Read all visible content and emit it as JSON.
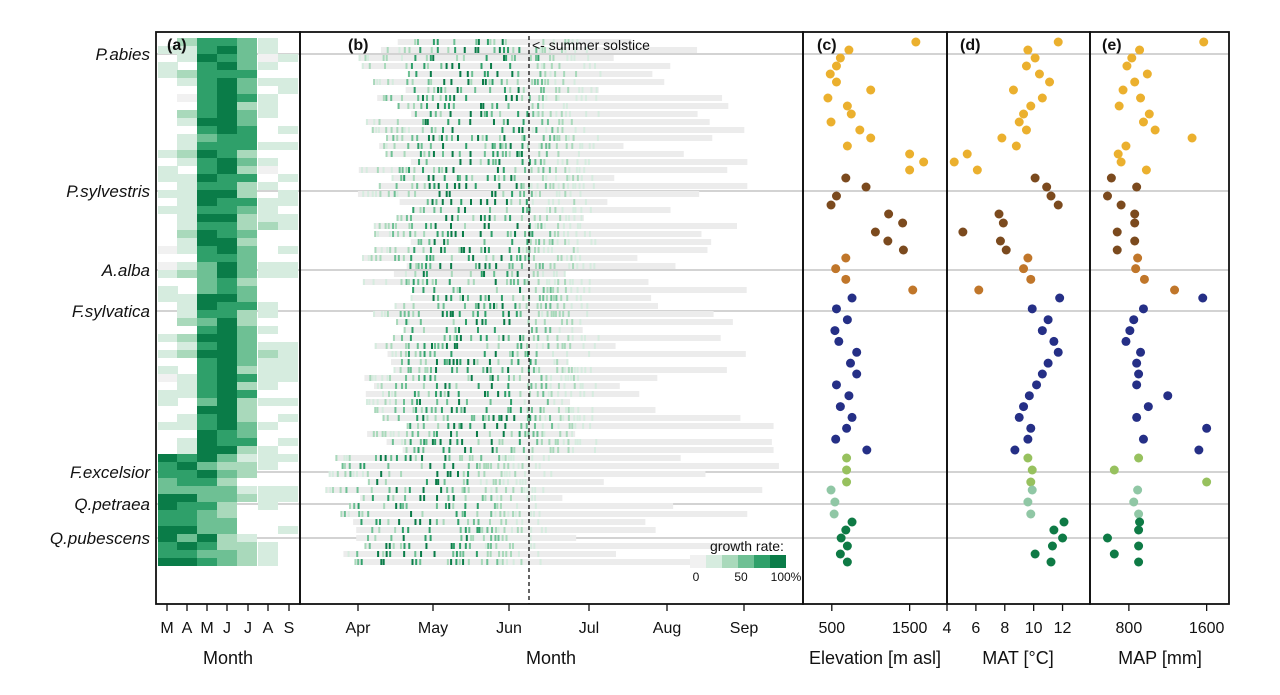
{
  "chart_data": {
    "type": "heatmap",
    "species": [
      "P.abies",
      "P.sylvestris",
      "A.alba",
      "F.sylvatica",
      "F.excelsior",
      "Q.petraea",
      "Q.pubescens"
    ],
    "species_colors": {
      "P.abies": "#EBB02E",
      "P.sylvestris": "#7B4A1E",
      "A.alba": "#C0762A",
      "F.sylvatica": "#252F86",
      "F.excelsior": "#97C15E",
      "Q.petraea": "#90C7A5",
      "Q.pubescens": "#0E7A45"
    },
    "panels": {
      "a": {
        "label": "(a)",
        "xlabel": "Month",
        "ticks": [
          "M",
          "A",
          "M",
          "J",
          "J",
          "A",
          "S"
        ]
      },
      "b": {
        "label": "(b)",
        "xlabel": "Month",
        "ticks": [
          "Apr",
          "May",
          "Jun",
          "Jul",
          "Aug",
          "Sep"
        ],
        "annotation": "<- summer solstice"
      },
      "c": {
        "label": "(c)",
        "xlabel": "Elevation [m asl]",
        "ticks": [
          "500",
          "1500"
        ],
        "tick_values": [
          500,
          1500
        ],
        "xlim": [
          130,
          1980
        ]
      },
      "d": {
        "label": "(d)",
        "xlabel": "MAT [°C]",
        "ticks": [
          "4",
          "6",
          "8",
          "10",
          "12"
        ],
        "tick_values": [
          4,
          6,
          8,
          10,
          12
        ],
        "xlim": [
          4,
          13.9
        ]
      },
      "e": {
        "label": "(e)",
        "xlabel": "MAP [mm]",
        "ticks": [
          "800",
          "1600"
        ],
        "tick_values": [
          800,
          1600
        ],
        "xlim": [
          400,
          1830
        ]
      }
    },
    "legend": {
      "title": "growth rate:",
      "labels": [
        "0",
        "50",
        "100%"
      ],
      "colors": [
        "#f1f1f1",
        "#d6ecdf",
        "#a9d9bb",
        "#6ec094",
        "#2fa06a",
        "#0a7c48"
      ]
    },
    "sites": [
      {
        "species": "P.abies",
        "elevation": 1580,
        "mat": 11.7,
        "map": 1570
      },
      {
        "species": "P.abies",
        "elevation": 720,
        "mat": 9.6,
        "map": 910
      },
      {
        "species": "P.abies",
        "elevation": 610,
        "mat": 10.1,
        "map": 830
      },
      {
        "species": "P.abies",
        "elevation": 560,
        "mat": 9.5,
        "map": 780
      },
      {
        "species": "P.abies",
        "elevation": 480,
        "mat": 10.4,
        "map": 990
      },
      {
        "species": "P.abies",
        "elevation": 560,
        "mat": 11.1,
        "map": 860
      },
      {
        "species": "P.abies",
        "elevation": 1000,
        "mat": 8.6,
        "map": 740
      },
      {
        "species": "P.abies",
        "elevation": 450,
        "mat": 10.6,
        "map": 920
      },
      {
        "species": "P.abies",
        "elevation": 700,
        "mat": 9.8,
        "map": 700
      },
      {
        "species": "P.abies",
        "elevation": 750,
        "mat": 9.3,
        "map": 1010
      },
      {
        "species": "P.abies",
        "elevation": 490,
        "mat": 9.0,
        "map": 950
      },
      {
        "species": "P.abies",
        "elevation": 860,
        "mat": 9.5,
        "map": 1070
      },
      {
        "species": "P.abies",
        "elevation": 1000,
        "mat": 7.8,
        "map": 1450
      },
      {
        "species": "P.abies",
        "elevation": 700,
        "mat": 8.8,
        "map": 770
      },
      {
        "species": "P.abies",
        "elevation": 1500,
        "mat": 5.4,
        "map": 690
      },
      {
        "species": "P.abies",
        "elevation": 1680,
        "mat": 4.5,
        "map": 720
      },
      {
        "species": "P.abies",
        "elevation": 1500,
        "mat": 6.1,
        "map": 980
      },
      {
        "species": "P.sylvestris",
        "elevation": 680,
        "mat": 10.1,
        "map": 620
      },
      {
        "species": "P.sylvestris",
        "elevation": 940,
        "mat": 10.9,
        "map": 880
      },
      {
        "species": "P.sylvestris",
        "elevation": 560,
        "mat": 11.2,
        "map": 580
      },
      {
        "species": "P.sylvestris",
        "elevation": 490,
        "mat": 11.7,
        "map": 720
      },
      {
        "species": "P.sylvestris",
        "elevation": 1230,
        "mat": 7.6,
        "map": 860
      },
      {
        "species": "P.sylvestris",
        "elevation": 1410,
        "mat": 7.9,
        "map": 860
      },
      {
        "species": "P.sylvestris",
        "elevation": 1060,
        "mat": 5.1,
        "map": 680
      },
      {
        "species": "P.sylvestris",
        "elevation": 1220,
        "mat": 7.7,
        "map": 860
      },
      {
        "species": "P.sylvestris",
        "elevation": 1420,
        "mat": 8.1,
        "map": 680
      },
      {
        "species": "A.alba",
        "elevation": 680,
        "mat": 9.6,
        "map": 890
      },
      {
        "species": "A.alba",
        "elevation": 550,
        "mat": 9.3,
        "map": 870
      },
      {
        "species": "A.alba",
        "elevation": 680,
        "mat": 9.8,
        "map": 960
      },
      {
        "species": "A.alba",
        "elevation": 1540,
        "mat": 6.2,
        "map": 1270
      },
      {
        "species": "F.sylvatica",
        "elevation": 760,
        "mat": 11.8,
        "map": 1560
      },
      {
        "species": "F.sylvatica",
        "elevation": 560,
        "mat": 9.9,
        "map": 950
      },
      {
        "species": "F.sylvatica",
        "elevation": 700,
        "mat": 11.0,
        "map": 850
      },
      {
        "species": "F.sylvatica",
        "elevation": 540,
        "mat": 10.6,
        "map": 810
      },
      {
        "species": "F.sylvatica",
        "elevation": 590,
        "mat": 11.4,
        "map": 770
      },
      {
        "species": "F.sylvatica",
        "elevation": 820,
        "mat": 11.7,
        "map": 920
      },
      {
        "species": "F.sylvatica",
        "elevation": 740,
        "mat": 11.0,
        "map": 880
      },
      {
        "species": "F.sylvatica",
        "elevation": 820,
        "mat": 10.6,
        "map": 900
      },
      {
        "species": "F.sylvatica",
        "elevation": 560,
        "mat": 10.2,
        "map": 880
      },
      {
        "species": "F.sylvatica",
        "elevation": 720,
        "mat": 9.7,
        "map": 1200
      },
      {
        "species": "F.sylvatica",
        "elevation": 610,
        "mat": 9.3,
        "map": 1000
      },
      {
        "species": "F.sylvatica",
        "elevation": 760,
        "mat": 9.0,
        "map": 880
      },
      {
        "species": "F.sylvatica",
        "elevation": 690,
        "mat": 9.8,
        "map": 1600
      },
      {
        "species": "F.sylvatica",
        "elevation": 550,
        "mat": 9.6,
        "map": 950
      },
      {
        "species": "F.sylvatica",
        "elevation": 950,
        "mat": 8.7,
        "map": 1520
      },
      {
        "species": "F.excelsior",
        "elevation": 690,
        "mat": 9.6,
        "map": 900
      },
      {
        "species": "F.excelsior",
        "elevation": 690,
        "mat": 9.9,
        "map": 650
      },
      {
        "species": "F.excelsior",
        "elevation": 690,
        "mat": 9.8,
        "map": 1600
      },
      {
        "species": "Q.petraea",
        "elevation": 490,
        "mat": 9.9,
        "map": 890
      },
      {
        "species": "Q.petraea",
        "elevation": 540,
        "mat": 9.6,
        "map": 850
      },
      {
        "species": "Q.petraea",
        "elevation": 530,
        "mat": 9.8,
        "map": 900
      },
      {
        "species": "Q.pubescens",
        "elevation": 760,
        "mat": 12.1,
        "map": 910
      },
      {
        "species": "Q.pubescens",
        "elevation": 680,
        "mat": 11.4,
        "map": 900
      },
      {
        "species": "Q.pubescens",
        "elevation": 620,
        "mat": 12.0,
        "map": 580
      },
      {
        "species": "Q.pubescens",
        "elevation": 700,
        "mat": 11.3,
        "map": 900
      },
      {
        "species": "Q.pubescens",
        "elevation": 610,
        "mat": 10.1,
        "map": 650
      },
      {
        "species": "Q.pubescens",
        "elevation": 700,
        "mat": 11.2,
        "map": 900
      }
    ]
  }
}
